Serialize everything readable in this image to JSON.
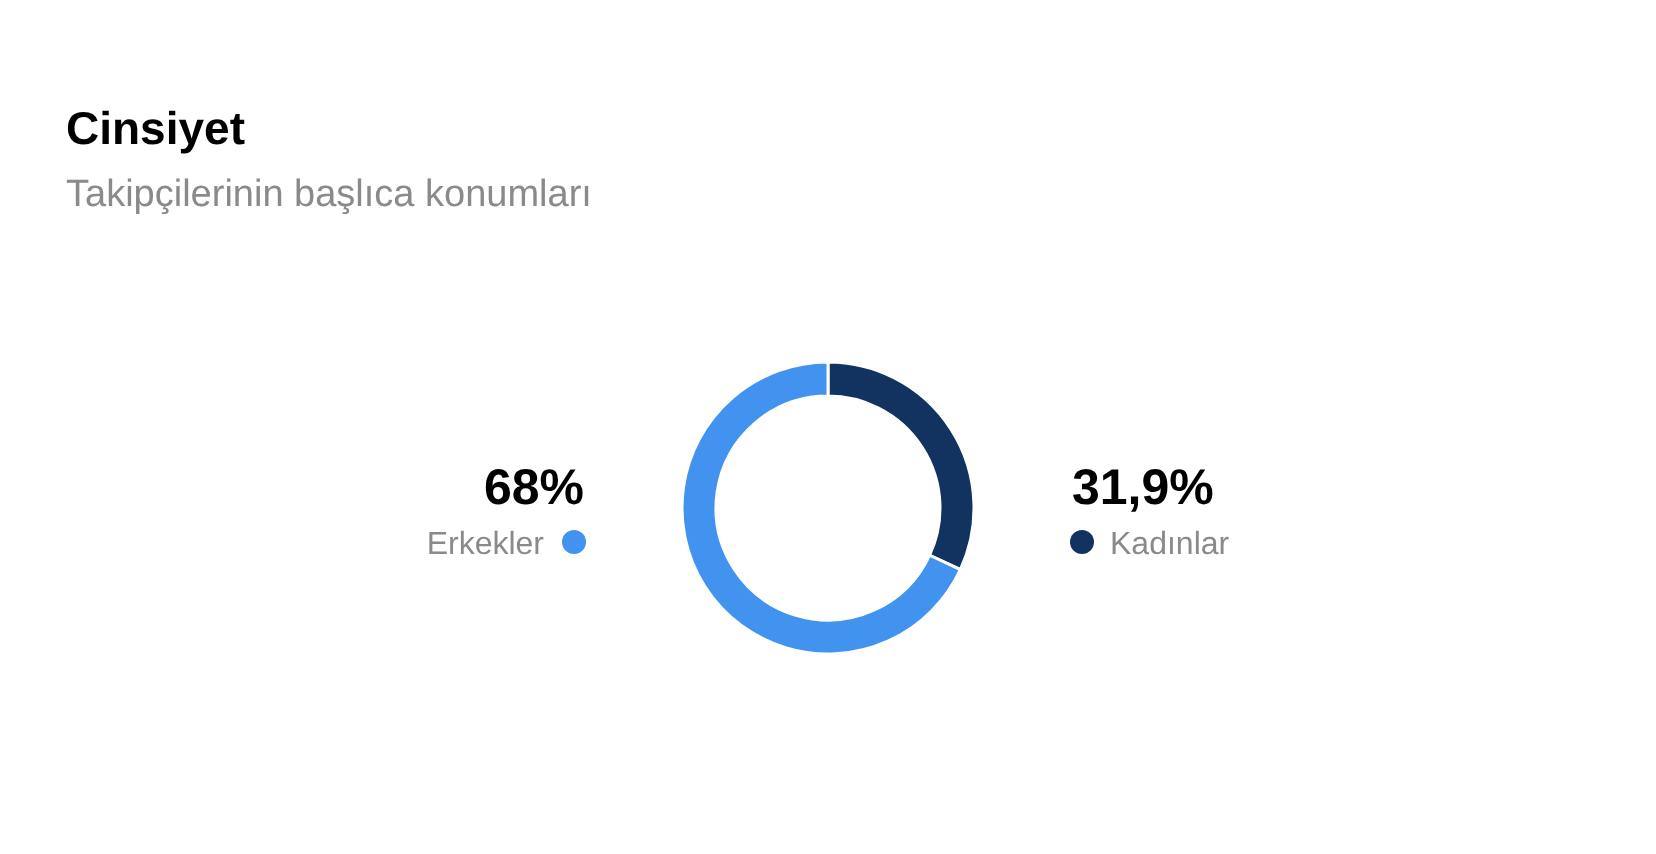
{
  "chart_data": {
    "type": "donut",
    "title": "Cinsiyet",
    "subtitle": "Takipçilerinin başlıca konumları",
    "categories": [
      "Kadınlar",
      "Erkekler"
    ],
    "values": [
      31.9,
      68
    ],
    "colors": [
      "#12335f",
      "#4193ef"
    ],
    "value_labels": [
      "31,9%",
      "68%"
    ],
    "legend": "right"
  }
}
